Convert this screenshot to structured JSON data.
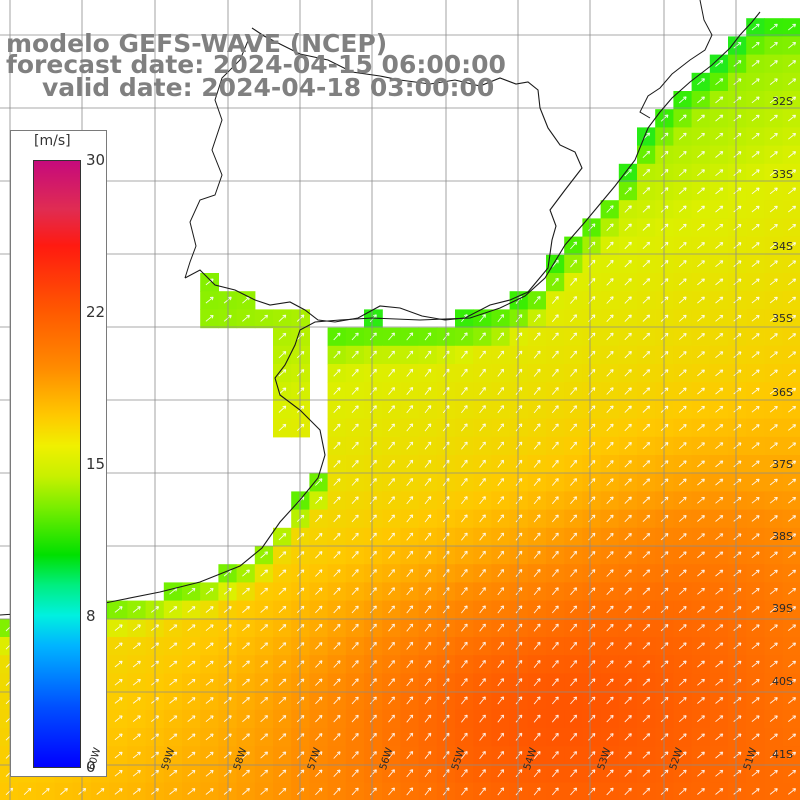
{
  "header": {
    "line1": "modelo GEFS-WAVE (NCEP)",
    "line2": "forecast date: 2024-04-15 06:00:00",
    "line3": "valid date: 2024-04-18 03:00:00"
  },
  "colorbar": {
    "unit": "[m/s]",
    "ticks": [
      "30",
      "22",
      "15",
      "8",
      "0"
    ],
    "min": 0,
    "max": 30,
    "colors": [
      "#0000ff",
      "#00b4ff",
      "#00f0e0",
      "#00e000",
      "#7cee00",
      "#f0f000",
      "#ff8a00",
      "#ff1a10",
      "#c60a7c"
    ]
  },
  "lat_labels": [
    "32S",
    "33S",
    "34S",
    "35S",
    "36S",
    "37S",
    "38S",
    "39S",
    "40S",
    "41S"
  ],
  "lon_labels": [
    "60W",
    "59W",
    "58W",
    "57W",
    "56W",
    "55W",
    "54W",
    "53W",
    "52W",
    "51W"
  ],
  "field": {
    "variable": "wind speed",
    "units": "m/s",
    "arrow_direction": "northeast",
    "palette": {
      "land": "#ffffff",
      "grid": "#8c8c8c",
      "coast": "#1a1a1a",
      "arrow": "#ffffff"
    }
  }
}
